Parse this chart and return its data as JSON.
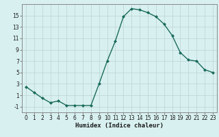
{
  "x": [
    0,
    1,
    2,
    3,
    4,
    5,
    6,
    7,
    8,
    9,
    10,
    11,
    12,
    13,
    14,
    15,
    16,
    17,
    18,
    19,
    20,
    21,
    22,
    23
  ],
  "y": [
    2.5,
    1.5,
    0.5,
    -0.3,
    0.0,
    -0.8,
    -0.8,
    -0.8,
    -0.8,
    3.0,
    7.0,
    10.5,
    14.8,
    16.2,
    16.0,
    15.5,
    14.8,
    13.5,
    11.5,
    8.5,
    7.2,
    7.0,
    5.5,
    5.0
  ],
  "line_color": "#1a6b5a",
  "marker": "D",
  "marker_size": 2,
  "bg_color": "#d8f0f0",
  "grid_color": "#c0d8d8",
  "xlabel": "Humidex (Indice chaleur)",
  "ylabel_ticks": [
    -1,
    1,
    3,
    5,
    7,
    9,
    11,
    13,
    15
  ],
  "xlim": [
    -0.5,
    23.5
  ],
  "ylim": [
    -2,
    17
  ],
  "spine_color": "#888888",
  "font_color": "#1a1a1a",
  "tick_label_fontsize": 5.5,
  "xlabel_fontsize": 6.5
}
